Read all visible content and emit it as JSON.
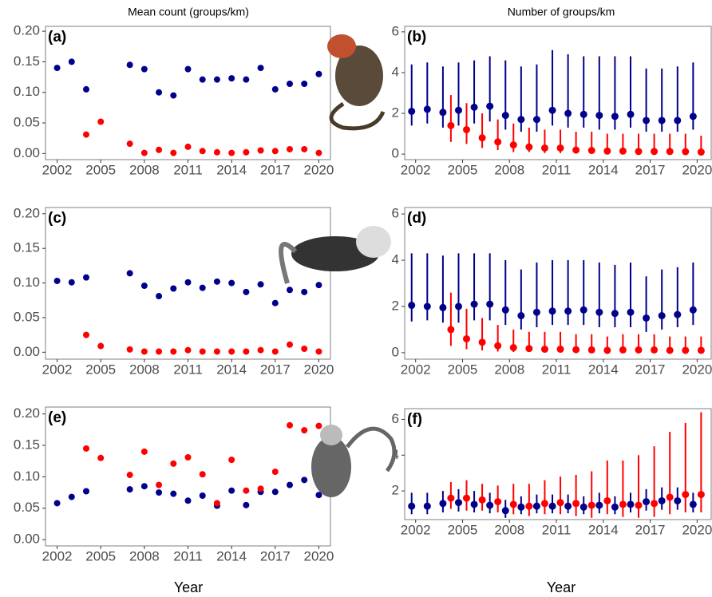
{
  "column_titles": [
    "Mean count (groups/km)",
    "Number of groups/km"
  ],
  "x_axis_titles": [
    "Year",
    "Year"
  ],
  "chart_data": [
    {
      "type": "scatter",
      "label": "(a)",
      "x": [
        2002,
        2003,
        2004,
        2005,
        2006,
        2007,
        2008,
        2009,
        2010,
        2011,
        2012,
        2013,
        2014,
        2015,
        2016,
        2017,
        2018,
        2019,
        2020
      ],
      "xlim": [
        2001.2,
        2020.8
      ],
      "xticks": [
        2002,
        2005,
        2008,
        2011,
        2014,
        2017,
        2020
      ],
      "ylim": [
        -0.01,
        0.208
      ],
      "yticks": [
        {
          "value": 0,
          "label": "0.00"
        },
        0.05,
        {
          "value": 0.1,
          "label": "0.10"
        },
        0.15,
        {
          "value": 0.2,
          "label": "0.20"
        }
      ],
      "series": [
        {
          "color": "#00008b",
          "values": [
            0.14,
            0.15,
            0.105,
            null,
            null,
            0.145,
            0.138,
            0.1,
            0.095,
            0.138,
            0.121,
            0.121,
            0.123,
            0.121,
            0.14,
            0.105,
            0.114,
            0.114,
            0.13
          ]
        },
        {
          "color": "#ff0000",
          "values": [
            null,
            null,
            0.031,
            0.052,
            null,
            0.016,
            0.001,
            0.006,
            0.001,
            0.011,
            0.004,
            0.002,
            0.001,
            0.002,
            0.005,
            0.004,
            0.007,
            0.007,
            0.001
          ]
        }
      ]
    },
    {
      "type": "errorbar",
      "label": "(b)",
      "x": [
        2002,
        2003,
        2004,
        2005,
        2006,
        2007,
        2008,
        2009,
        2010,
        2011,
        2012,
        2013,
        2014,
        2015,
        2016,
        2017,
        2018,
        2019,
        2020
      ],
      "xlim": [
        2001.3,
        2020.9
      ],
      "xticks": [
        2002,
        2005,
        2008,
        2011,
        2014,
        2017,
        2020
      ],
      "ylim": [
        -0.27,
        6.27
      ],
      "yticks": [
        0,
        2,
        4,
        6
      ],
      "series": [
        {
          "color": "#00008b",
          "values": [
            2.1,
            2.2,
            2.05,
            2.15,
            2.3,
            2.35,
            1.9,
            1.7,
            1.7,
            2.15,
            2.0,
            1.95,
            1.9,
            1.85,
            1.95,
            1.65,
            1.65,
            1.65,
            1.85
          ],
          "lower": [
            1.4,
            1.5,
            1.3,
            1.4,
            1.5,
            1.6,
            1.2,
            1.1,
            1.1,
            1.4,
            1.3,
            1.3,
            1.2,
            1.2,
            1.3,
            1.1,
            1.1,
            1.1,
            1.2
          ],
          "upper": [
            4.4,
            4.5,
            4.3,
            4.5,
            4.6,
            4.8,
            4.6,
            4.3,
            4.4,
            5.1,
            4.9,
            4.8,
            4.8,
            4.8,
            4.8,
            4.2,
            4.2,
            4.3,
            4.5
          ]
        },
        {
          "color": "#ff0000",
          "values": [
            null,
            null,
            1.4,
            1.2,
            0.8,
            0.6,
            0.45,
            0.35,
            0.3,
            0.3,
            0.2,
            0.18,
            0.15,
            0.15,
            0.13,
            0.13,
            0.13,
            0.12,
            0.1
          ],
          "lower": [
            null,
            null,
            0.6,
            0.5,
            0.3,
            0.2,
            0.1,
            0.1,
            0.05,
            0.05,
            0.03,
            0.03,
            0.02,
            0.02,
            0.02,
            0.02,
            0.02,
            0.01,
            0.01
          ],
          "upper": [
            null,
            null,
            2.9,
            2.5,
            2.0,
            1.7,
            1.5,
            1.3,
            1.2,
            1.2,
            1.1,
            1.1,
            1.0,
            1.0,
            1.0,
            1.0,
            1.0,
            1.0,
            0.9
          ]
        }
      ]
    },
    {
      "type": "scatter",
      "label": "(c)",
      "x": [
        2002,
        2003,
        2004,
        2005,
        2006,
        2007,
        2008,
        2009,
        2010,
        2011,
        2012,
        2013,
        2014,
        2015,
        2016,
        2017,
        2018,
        2019,
        2020
      ],
      "xlim": [
        2001.2,
        2020.8
      ],
      "xticks": [
        2002,
        2005,
        2008,
        2011,
        2014,
        2017,
        2020
      ],
      "ylim": [
        -0.01,
        0.209
      ],
      "yticks": [
        {
          "value": 0,
          "label": "0.00"
        },
        0.05,
        {
          "value": 0.1,
          "label": "0.10"
        },
        0.15,
        {
          "value": 0.2,
          "label": "0.20"
        }
      ],
      "series": [
        {
          "color": "#00008b",
          "values": [
            0.103,
            0.101,
            0.108,
            null,
            null,
            0.114,
            0.096,
            0.081,
            0.092,
            0.101,
            0.093,
            0.102,
            0.1,
            0.087,
            0.098,
            0.071,
            0.09,
            0.087,
            0.097
          ]
        },
        {
          "color": "#ff0000",
          "values": [
            null,
            null,
            0.025,
            0.009,
            null,
            0.004,
            0.001,
            0.001,
            0.001,
            0.003,
            0.001,
            0.001,
            0.001,
            0.001,
            0.003,
            0.001,
            0.011,
            0.005,
            0.001
          ]
        }
      ]
    },
    {
      "type": "errorbar",
      "label": "(d)",
      "x": [
        2002,
        2003,
        2004,
        2005,
        2006,
        2007,
        2008,
        2009,
        2010,
        2011,
        2012,
        2013,
        2014,
        2015,
        2016,
        2017,
        2018,
        2019,
        2020
      ],
      "xlim": [
        2001.3,
        2020.9
      ],
      "xticks": [
        2002,
        2005,
        2008,
        2011,
        2014,
        2017,
        2020
      ],
      "ylim": [
        -0.28,
        6.28
      ],
      "yticks": [
        0,
        2,
        4,
        6
      ],
      "series": [
        {
          "color": "#00008b",
          "values": [
            2.05,
            2.0,
            1.95,
            2.0,
            2.1,
            2.1,
            1.85,
            1.6,
            1.75,
            1.8,
            1.8,
            1.85,
            1.75,
            1.7,
            1.75,
            1.5,
            1.6,
            1.65,
            1.85
          ],
          "lower": [
            1.35,
            1.4,
            1.3,
            1.3,
            1.4,
            1.4,
            1.2,
            1.0,
            1.1,
            1.2,
            1.2,
            1.2,
            1.1,
            1.1,
            1.1,
            0.9,
            1.0,
            1.1,
            1.2
          ],
          "upper": [
            4.3,
            4.3,
            4.2,
            4.3,
            4.3,
            4.3,
            4.0,
            3.6,
            3.9,
            4.0,
            4.0,
            4.0,
            3.9,
            3.8,
            3.9,
            3.3,
            3.6,
            3.7,
            3.9
          ]
        },
        {
          "color": "#ff0000",
          "values": [
            null,
            null,
            1.0,
            0.6,
            0.45,
            0.3,
            0.22,
            0.18,
            0.15,
            0.15,
            0.13,
            0.12,
            0.1,
            0.12,
            0.12,
            0.12,
            0.1,
            0.1,
            0.1
          ],
          "lower": [
            null,
            null,
            0.3,
            0.15,
            0.1,
            0.05,
            0.03,
            0.03,
            0.02,
            0.02,
            0.02,
            0.02,
            0.01,
            0.02,
            0.02,
            0.02,
            0.01,
            0.01,
            0.01
          ],
          "upper": [
            null,
            null,
            2.6,
            1.9,
            1.5,
            1.2,
            1.0,
            0.9,
            0.9,
            0.9,
            0.8,
            0.8,
            0.7,
            0.8,
            0.8,
            0.8,
            0.7,
            0.7,
            0.7
          ]
        }
      ]
    },
    {
      "type": "scatter",
      "label": "(e)",
      "x": [
        2002,
        2003,
        2004,
        2005,
        2006,
        2007,
        2008,
        2009,
        2010,
        2011,
        2012,
        2013,
        2014,
        2015,
        2016,
        2017,
        2018,
        2019,
        2020
      ],
      "xlim": [
        2001.2,
        2020.8
      ],
      "xticks": [
        2002,
        2005,
        2008,
        2011,
        2014,
        2017,
        2020
      ],
      "ylim": [
        -0.01,
        0.211
      ],
      "yticks": [
        {
          "value": 0,
          "label": "0.00"
        },
        0.05,
        {
          "value": 0.1,
          "label": "0.10"
        },
        0.15,
        {
          "value": 0.2,
          "label": "0.20"
        }
      ],
      "series": [
        {
          "color": "#00008b",
          "values": [
            0.058,
            0.068,
            0.077,
            null,
            null,
            0.08,
            0.085,
            0.075,
            0.073,
            0.062,
            0.07,
            0.054,
            0.078,
            0.055,
            0.076,
            0.076,
            0.087,
            0.095,
            0.071
          ]
        },
        {
          "color": "#ff0000",
          "values": [
            null,
            null,
            0.145,
            0.13,
            null,
            0.103,
            0.14,
            0.087,
            0.121,
            0.131,
            0.104,
            0.058,
            0.127,
            0.078,
            0.081,
            0.108,
            0.182,
            0.174,
            0.181
          ]
        }
      ]
    },
    {
      "type": "errorbar",
      "label": "(f)",
      "x": [
        2002,
        2003,
        2004,
        2005,
        2006,
        2007,
        2008,
        2009,
        2010,
        2011,
        2012,
        2013,
        2014,
        2015,
        2016,
        2017,
        2018,
        2019,
        2020
      ],
      "xlim": [
        2001.3,
        2020.9
      ],
      "xticks": [
        2002,
        2005,
        2008,
        2011,
        2014,
        2017,
        2020
      ],
      "ylim": [
        0.4,
        6.6
      ],
      "yticks": [
        2,
        4,
        6
      ],
      "series": [
        {
          "color": "#00008b",
          "values": [
            1.15,
            1.15,
            1.3,
            1.35,
            1.25,
            1.2,
            0.9,
            1.1,
            1.15,
            1.15,
            1.15,
            1.1,
            1.2,
            1.1,
            1.25,
            1.4,
            1.45,
            1.45,
            1.25
          ],
          "lower": [
            0.7,
            0.7,
            0.8,
            0.85,
            0.8,
            0.75,
            0.5,
            0.7,
            0.75,
            0.75,
            0.75,
            0.7,
            0.75,
            0.7,
            0.8,
            0.9,
            0.95,
            0.95,
            0.8
          ],
          "upper": [
            1.9,
            1.9,
            2.0,
            2.1,
            2.0,
            1.9,
            1.5,
            1.7,
            1.8,
            1.8,
            1.8,
            1.7,
            1.9,
            1.7,
            1.9,
            2.1,
            2.2,
            2.2,
            1.9
          ]
        },
        {
          "color": "#ff0000",
          "values": [
            null,
            null,
            1.6,
            1.6,
            1.5,
            1.4,
            1.25,
            1.15,
            1.3,
            1.35,
            1.3,
            1.2,
            1.45,
            1.25,
            1.2,
            1.3,
            1.65,
            1.8,
            1.8
          ],
          "lower": [
            null,
            null,
            1.0,
            0.9,
            0.9,
            0.8,
            0.7,
            0.6,
            0.7,
            0.7,
            0.6,
            0.5,
            0.7,
            0.55,
            0.5,
            0.55,
            0.7,
            0.8,
            0.8
          ],
          "upper": [
            null,
            null,
            2.5,
            2.6,
            2.4,
            2.3,
            2.4,
            2.4,
            2.6,
            2.8,
            2.9,
            3.1,
            3.7,
            3.7,
            4.0,
            4.5,
            5.3,
            5.8,
            6.4
          ]
        }
      ]
    }
  ]
}
